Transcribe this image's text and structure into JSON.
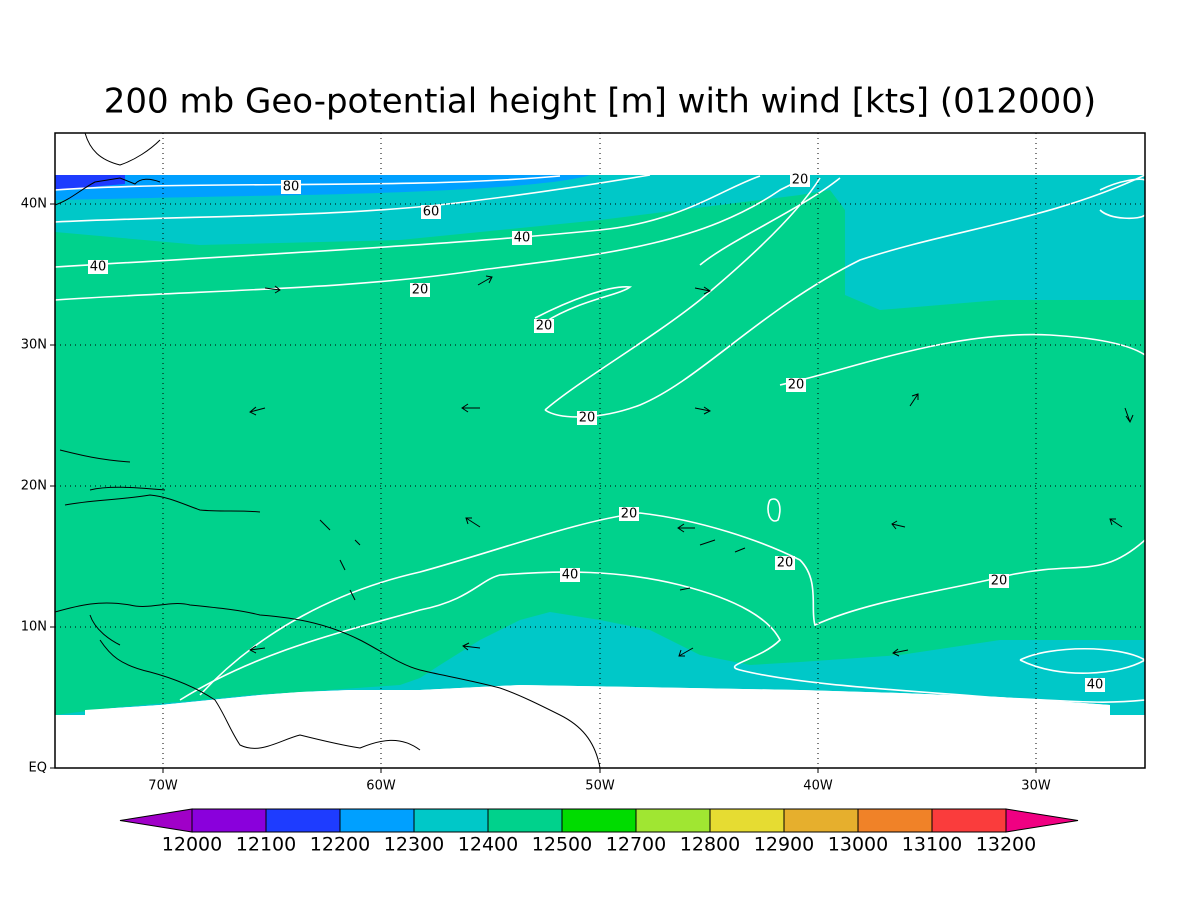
{
  "title": "200 mb Geo-potential height [m] with wind [kts] (012000)",
  "map": {
    "lon_labels": [
      "70W",
      "60W",
      "50W",
      "40W",
      "30W"
    ],
    "lat_labels": [
      "EQ",
      "10N",
      "20N",
      "30N",
      "40N"
    ],
    "contour_labels": [
      "80",
      "60",
      "40",
      "40",
      "20",
      "20",
      "20",
      "20",
      "20",
      "20",
      "20",
      "40",
      "20",
      "40"
    ]
  },
  "colorbar": {
    "labels": [
      "12000",
      "12100",
      "12200",
      "12300",
      "12400",
      "12500",
      "12700",
      "12800",
      "12900",
      "13000",
      "13100",
      "13200"
    ],
    "colors": [
      "#a000c8",
      "#8a00dc",
      "#1e3cff",
      "#00a0ff",
      "#00c8c8",
      "#00d28c",
      "#00dc00",
      "#a0e632",
      "#e6dc32",
      "#e6af2d",
      "#f08228",
      "#fa3c3c",
      "#f00082"
    ]
  }
}
